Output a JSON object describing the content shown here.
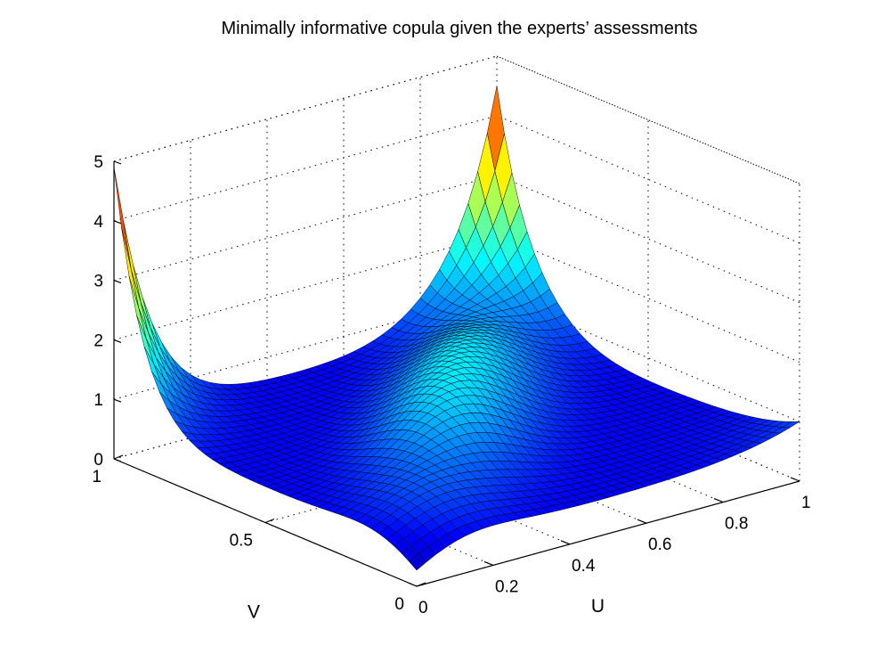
{
  "chart_data": {
    "type": "surface",
    "title": "Minimally informative copula given the experts’ assessments",
    "xlabel": "U",
    "ylabel": "V",
    "zlabel": "",
    "xlim": [
      0,
      1
    ],
    "ylim": [
      0,
      1
    ],
    "zlim": [
      0,
      5
    ],
    "x_ticks": [
      "0",
      "0.2",
      "0.4",
      "0.6",
      "0.8",
      "1"
    ],
    "y_ticks": [
      "0",
      "0.5",
      "1"
    ],
    "z_ticks": [
      "0",
      "1",
      "2",
      "3",
      "4",
      "5"
    ],
    "grid": true,
    "colormap": [
      "#00008f",
      "#0000ff",
      "#0080ff",
      "#00ffff",
      "#80ff80",
      "#ffff00",
      "#ff8000",
      "#ff0000",
      "#800000"
    ],
    "grid_resolution": 40,
    "corner_density": {
      "u0_v0": 0.27,
      "u1_v0": 1.0,
      "u0_v1": 4.9,
      "u1_v1": 4.5
    },
    "center_density": 0.6,
    "diagonal_ridge_peak": 1.85
  }
}
